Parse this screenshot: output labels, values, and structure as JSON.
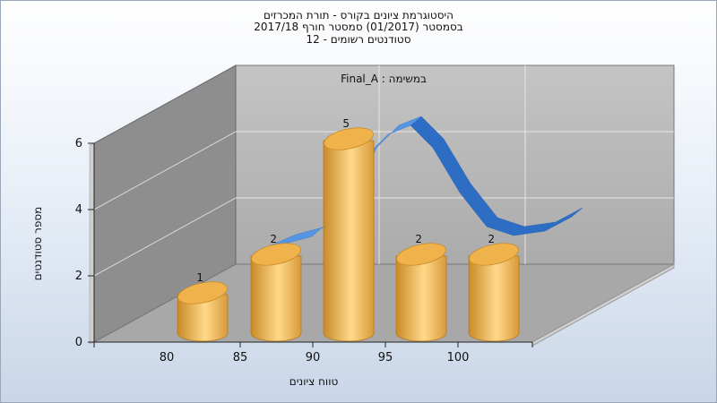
{
  "header": {
    "title_lines": [
      "היסטוגרמת ציונים בקורס - תורת המכרזים",
      "בסמסטר  (01/2017)  סמסטר חורף 2017/18",
      "סטודנטים רשומים - 12"
    ]
  },
  "chart_data": {
    "type": "bar",
    "annotation": "במשימה : Final_A",
    "categories": [
      "80",
      "85",
      "90",
      "95",
      "100"
    ],
    "values": [
      1,
      2,
      5,
      2,
      2
    ],
    "data_labels": [
      "1",
      "2",
      "5",
      "2",
      "2"
    ],
    "yticks": [
      "0",
      "2",
      "4",
      "6"
    ],
    "ylim": [
      0,
      6
    ],
    "xlabel": "טווח ציונים",
    "ylabel": "מספר סטודנטים",
    "grid": true,
    "curve": "smoothed distribution",
    "colors": {
      "bar_light": "#ffd98a",
      "bar_mid": "#f0b24a",
      "bar_dark": "#c98a28",
      "curve_light": "#5a9ae8",
      "curve_dark": "#2d6ec4",
      "back_wall": "#b3b3b3",
      "side_wall": "#8a8a8a",
      "floor": "#a9a9a9"
    }
  }
}
